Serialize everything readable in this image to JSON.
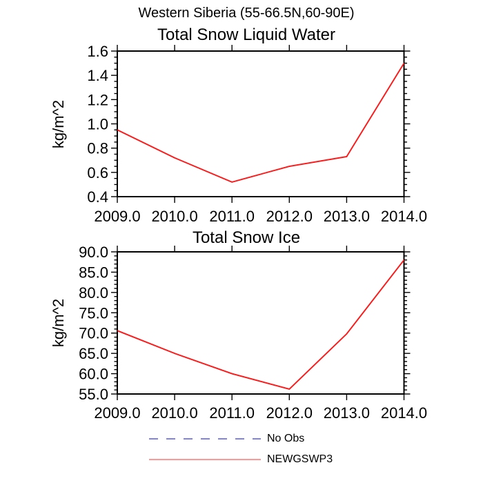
{
  "page": {
    "main_title": "Western Siberia (55-66.5N,60-90E)"
  },
  "colors": {
    "series_red": "#ff1616",
    "legend_red": "#ff7575",
    "legend_blue": "#7070e1",
    "axis": "#000000"
  },
  "chart_data": [
    {
      "type": "line",
      "title": "Total Snow Liquid Water",
      "xlabel": "",
      "ylabel": "kg/m^2",
      "x": [
        2009,
        2010,
        2011,
        2012,
        2013,
        2014
      ],
      "xtick_labels": [
        "2009.0",
        "2010.0",
        "2011.0",
        "2012.0",
        "2013.0",
        "2014.0"
      ],
      "ytick_labels": [
        "0.4",
        "0.6",
        "0.8",
        "1.0",
        "1.2",
        "1.4",
        "1.6"
      ],
      "xlim": [
        2009,
        2014
      ],
      "ylim": [
        0.4,
        1.6
      ],
      "ymajor_step": 0.2,
      "yminor_step": 0.05,
      "grid": false,
      "series": [
        {
          "name": "NEWGSWP3",
          "color": "#ff1616",
          "values": [
            0.95,
            0.72,
            0.52,
            0.65,
            0.73,
            1.5
          ]
        }
      ]
    },
    {
      "type": "line",
      "title": "Total Snow Ice",
      "xlabel": "",
      "ylabel": "kg/m^2",
      "x": [
        2009,
        2010,
        2011,
        2012,
        2013,
        2014
      ],
      "xtick_labels": [
        "2009.0",
        "2010.0",
        "2011.0",
        "2012.0",
        "2013.0",
        "2014.0"
      ],
      "ytick_labels": [
        "55.0",
        "60.0",
        "65.0",
        "70.0",
        "75.0",
        "80.0",
        "85.0",
        "90.0"
      ],
      "xlim": [
        2009,
        2014
      ],
      "ylim": [
        55.0,
        90.0
      ],
      "ymajor_step": 5.0,
      "yminor_step": 1.0,
      "grid": false,
      "series": [
        {
          "name": "NEWGSWP3",
          "color": "#ff1616",
          "values": [
            70.6,
            65.0,
            60.0,
            56.2,
            69.8,
            88.0
          ]
        }
      ]
    }
  ],
  "legend": {
    "position": "bottom",
    "items": [
      {
        "label": "No Obs",
        "style": "dashed",
        "color": "#7070e1"
      },
      {
        "label": "NEWGSWP3",
        "style": "solid",
        "color": "#ff7575"
      }
    ]
  }
}
